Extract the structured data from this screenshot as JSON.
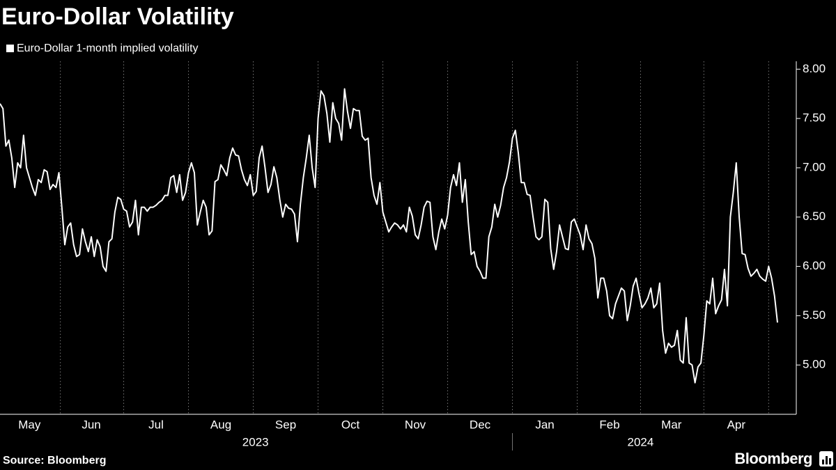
{
  "chart_data": {
    "type": "line",
    "title": "Euro-Dollar Volatility",
    "source": "Source: Bloomberg",
    "logo": "Bloomberg",
    "years": [
      "2023",
      "2024"
    ],
    "categories": [
      null,
      null,
      null,
      null,
      null,
      null,
      null,
      null,
      null,
      null,
      "May",
      null,
      null,
      null,
      null,
      null,
      null,
      null,
      null,
      null,
      null,
      null,
      null,
      null,
      null,
      null,
      null,
      null,
      null,
      null,
      null,
      "Jun",
      null,
      null,
      null,
      null,
      null,
      null,
      null,
      null,
      null,
      null,
      null,
      null,
      null,
      null,
      null,
      null,
      null,
      null,
      null,
      null,
      null,
      "Jul",
      null,
      null,
      null,
      null,
      null,
      null,
      null,
      null,
      null,
      null,
      null,
      null,
      null,
      null,
      null,
      null,
      null,
      null,
      null,
      null,
      null,
      "Aug",
      null,
      null,
      null,
      null,
      null,
      null,
      null,
      null,
      null,
      null,
      null,
      null,
      null,
      null,
      null,
      null,
      null,
      null,
      null,
      null,
      null,
      "Sep",
      null,
      null,
      null,
      null,
      null,
      null,
      null,
      null,
      null,
      null,
      null,
      null,
      null,
      null,
      null,
      null,
      null,
      null,
      null,
      null,
      null,
      "Oct",
      null,
      null,
      null,
      null,
      null,
      null,
      null,
      null,
      null,
      null,
      null,
      null,
      null,
      null,
      null,
      null,
      null,
      null,
      null,
      null,
      null,
      "Nov",
      null,
      null,
      null,
      null,
      null,
      null,
      null,
      null,
      null,
      null,
      null,
      null,
      null,
      null,
      null,
      null,
      null,
      null,
      null,
      null,
      null,
      "Dec",
      null,
      null,
      null,
      null,
      null,
      null,
      null,
      null,
      null,
      null,
      null,
      null,
      null,
      null,
      null,
      null,
      null,
      null,
      null,
      null,
      null,
      "Jan",
      null,
      null,
      null,
      null,
      null,
      null,
      null,
      null,
      null,
      null,
      null,
      null,
      null,
      null,
      null,
      null,
      null,
      null,
      null,
      null,
      null,
      "Feb",
      null,
      null,
      null,
      null,
      null,
      null,
      null,
      null,
      null,
      null,
      null,
      null,
      null,
      null,
      null,
      null,
      null,
      null,
      null,
      null,
      "Mar",
      null,
      null,
      null,
      null,
      null,
      null,
      null,
      null,
      null,
      null,
      null,
      null,
      null,
      null,
      null,
      null,
      null,
      null,
      null,
      null,
      null,
      "Apr",
      null,
      null,
      null,
      null,
      null,
      null,
      null,
      null,
      null,
      null,
      null,
      null,
      null,
      null
    ],
    "series": [
      {
        "name": "Euro-Dollar 1-month implied volatility",
        "color": "#ffffff",
        "values": [
          7.65,
          7.6,
          7.22,
          7.28,
          7.1,
          6.8,
          7.05,
          7.0,
          7.33,
          7.0,
          6.9,
          6.8,
          6.72,
          6.88,
          6.85,
          6.98,
          6.96,
          6.78,
          6.83,
          6.8,
          6.95,
          6.6,
          6.22,
          6.4,
          6.44,
          6.22,
          6.1,
          6.12,
          6.38,
          6.25,
          6.15,
          6.3,
          6.1,
          6.27,
          6.2,
          6.0,
          5.95,
          6.25,
          6.28,
          6.55,
          6.7,
          6.68,
          6.58,
          6.56,
          6.4,
          6.45,
          6.67,
          6.32,
          6.6,
          6.6,
          6.56,
          6.6,
          6.6,
          6.62,
          6.65,
          6.67,
          6.72,
          6.72,
          6.9,
          6.92,
          6.75,
          6.93,
          6.67,
          6.75,
          6.95,
          7.05,
          6.95,
          6.42,
          6.55,
          6.67,
          6.6,
          6.32,
          6.36,
          6.86,
          6.88,
          7.03,
          6.98,
          6.92,
          7.1,
          7.2,
          7.13,
          7.12,
          6.98,
          6.88,
          6.82,
          6.93,
          6.72,
          6.76,
          7.1,
          7.22,
          7.0,
          6.75,
          6.83,
          7.01,
          6.9,
          6.68,
          6.5,
          6.63,
          6.59,
          6.58,
          6.53,
          6.25,
          6.63,
          6.9,
          7.1,
          7.33,
          7.0,
          6.8,
          7.5,
          7.78,
          7.73,
          7.55,
          7.26,
          7.66,
          7.5,
          7.45,
          7.28,
          7.8,
          7.57,
          7.4,
          7.6,
          7.58,
          7.58,
          7.32,
          7.28,
          7.3,
          6.9,
          6.72,
          6.63,
          6.85,
          6.55,
          6.45,
          6.35,
          6.4,
          6.44,
          6.42,
          6.38,
          6.42,
          6.35,
          6.6,
          6.51,
          6.32,
          6.28,
          6.42,
          6.6,
          6.66,
          6.65,
          6.3,
          6.17,
          6.35,
          6.48,
          6.38,
          6.52,
          6.8,
          6.93,
          6.82,
          7.05,
          6.65,
          6.88,
          6.45,
          6.12,
          6.15,
          6.0,
          5.95,
          5.88,
          5.88,
          6.3,
          6.4,
          6.63,
          6.5,
          6.62,
          6.8,
          6.9,
          7.06,
          7.3,
          7.38,
          7.15,
          6.85,
          6.85,
          6.73,
          6.72,
          6.5,
          6.3,
          6.27,
          6.3,
          6.68,
          6.65,
          6.18,
          5.97,
          6.15,
          6.42,
          6.3,
          6.18,
          6.17,
          6.45,
          6.48,
          6.4,
          6.32,
          6.17,
          6.42,
          6.28,
          6.23,
          6.08,
          5.68,
          5.88,
          5.88,
          5.75,
          5.5,
          5.47,
          5.62,
          5.7,
          5.78,
          5.75,
          5.45,
          5.6,
          5.8,
          5.88,
          5.72,
          5.58,
          5.62,
          5.68,
          5.78,
          5.58,
          5.62,
          5.83,
          5.35,
          5.12,
          5.22,
          5.18,
          5.2,
          5.35,
          5.05,
          5.02,
          5.48,
          5.02,
          5.0,
          4.82,
          4.98,
          5.02,
          5.3,
          5.65,
          5.62,
          5.88,
          5.52,
          5.6,
          5.66,
          5.97,
          5.6,
          6.5,
          6.75,
          7.05,
          6.5,
          6.13,
          6.12,
          5.98,
          5.9,
          5.93,
          5.97,
          5.9,
          5.87,
          5.85,
          6.0,
          5.88,
          5.7,
          5.43
        ]
      }
    ],
    "ylim": [
      4.5,
      8.08
    ],
    "yticks": [
      {
        "value": 5,
        "label": "5.00"
      },
      {
        "value": 5.5,
        "label": "5.50"
      },
      {
        "value": 6,
        "label": "6.00"
      },
      {
        "value": 6.5,
        "label": "6.50"
      },
      {
        "value": 7,
        "label": "7.00"
      },
      {
        "value": 7.5,
        "label": "7.50"
      },
      {
        "value": 8,
        "label": "8.00"
      }
    ],
    "grid": true
  }
}
